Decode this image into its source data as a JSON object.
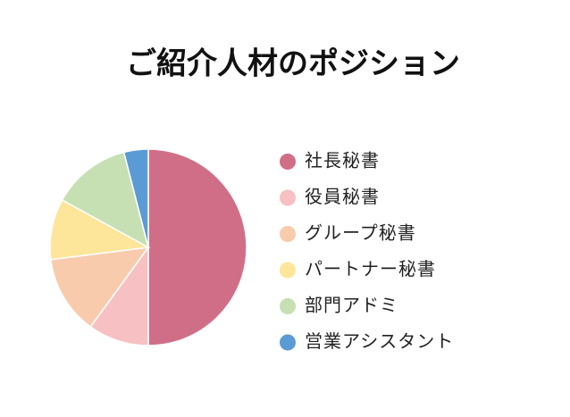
{
  "chart_data": {
    "type": "pie",
    "title": "ご紹介人材のポジション",
    "categories": [
      "社長秘書",
      "役員秘書",
      "グループ秘書",
      "パートナー秘書",
      "部門アドミ",
      "営業アシスタント"
    ],
    "values": [
      50,
      10,
      13,
      10,
      13,
      4
    ],
    "colors": [
      "#d16e87",
      "#f7c0c2",
      "#f8cbad",
      "#fde59a",
      "#c6e0b4",
      "#5b9bd5"
    ],
    "legend": "right"
  }
}
